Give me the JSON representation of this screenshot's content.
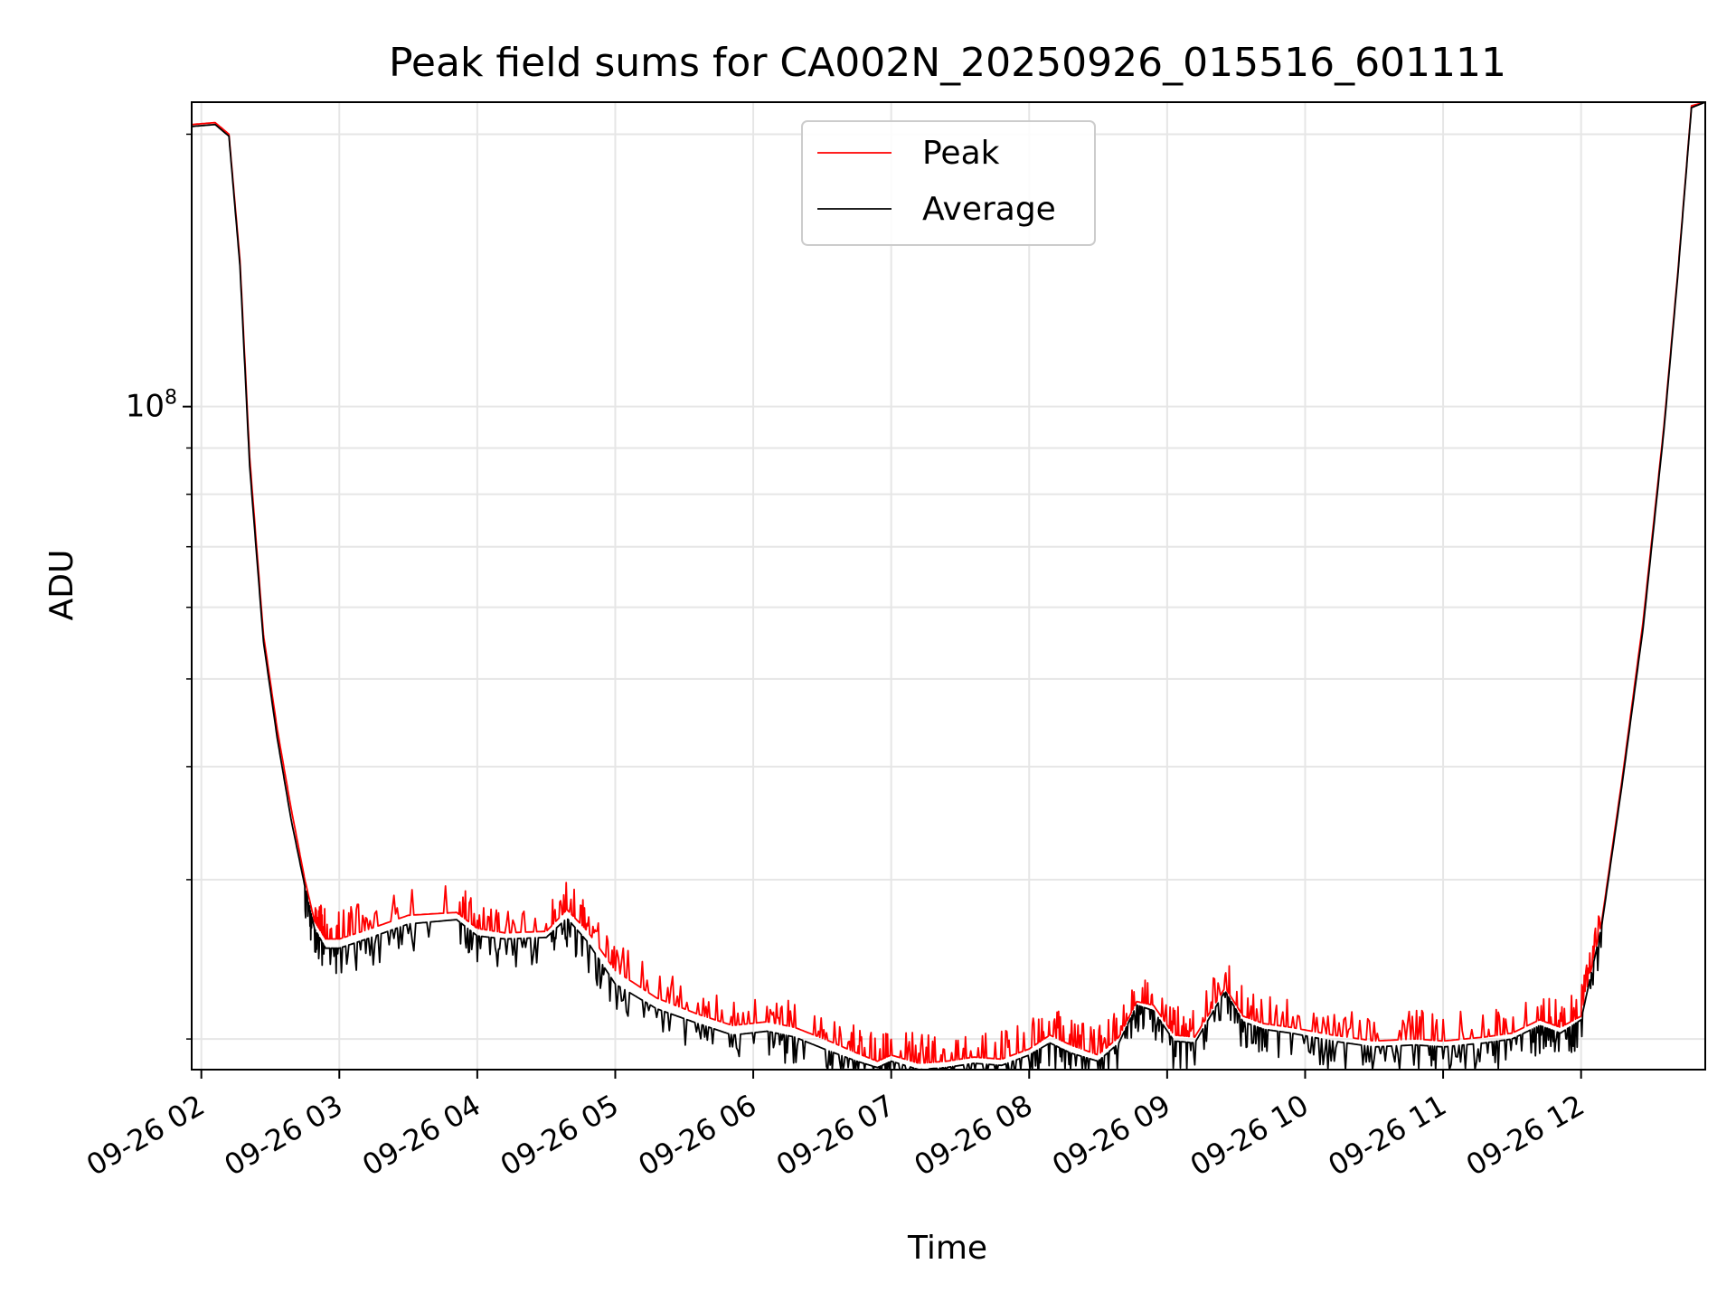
{
  "chart_data": {
    "type": "line",
    "title": "Peak field sums for CA002N_20250926_015516_601111",
    "xlabel": "Time",
    "ylabel": "ADU",
    "yscale": "log",
    "ylim": [
      18500000,
      217000000
    ],
    "xlim": [
      1.93,
      12.9
    ],
    "grid": true,
    "legend_position": "top-center",
    "x_ticks": [
      {
        "value": 2,
        "label": "09-26 02"
      },
      {
        "value": 3,
        "label": "09-26 03"
      },
      {
        "value": 4,
        "label": "09-26 04"
      },
      {
        "value": 5,
        "label": "09-26 05"
      },
      {
        "value": 6,
        "label": "09-26 06"
      },
      {
        "value": 7,
        "label": "09-26 07"
      },
      {
        "value": 8,
        "label": "09-26 08"
      },
      {
        "value": 9,
        "label": "09-26 09"
      },
      {
        "value": 10,
        "label": "09-26 10"
      },
      {
        "value": 11,
        "label": "09-26 11"
      },
      {
        "value": 12,
        "label": "09-26 12"
      }
    ],
    "y_major_ticks": [
      {
        "value": 100000000,
        "label_base": "10",
        "label_exp": "8"
      }
    ],
    "y_minor_ticks": [
      20000000,
      30000000,
      40000000,
      50000000,
      60000000,
      70000000,
      80000000,
      90000000,
      200000000
    ],
    "series": [
      {
        "name": "Peak",
        "color": "#ff0000",
        "x": [
          1.93,
          2.1,
          2.2,
          2.28,
          2.35,
          2.45,
          2.55,
          2.65,
          2.75,
          2.82,
          2.9,
          3.0,
          3.2,
          3.5,
          3.85,
          4.0,
          4.2,
          4.5,
          4.65,
          4.8,
          5.0,
          5.3,
          5.6,
          5.85,
          6.1,
          6.3,
          6.55,
          6.75,
          6.9,
          7.0,
          7.2,
          7.4,
          7.6,
          7.8,
          8.0,
          8.15,
          8.3,
          8.5,
          8.65,
          8.78,
          8.9,
          9.05,
          9.2,
          9.42,
          9.55,
          9.7,
          9.9,
          10.2,
          10.5,
          10.8,
          11.0,
          11.3,
          11.5,
          11.7,
          11.85,
          12.0,
          12.15,
          12.3,
          12.45,
          12.6,
          12.7,
          12.8,
          12.9
        ],
        "values": [
          205000000,
          206000000,
          200000000,
          145000000,
          88000000,
          56000000,
          44000000,
          36000000,
          30000000,
          27000000,
          25800000,
          25800000,
          26400000,
          27400000,
          27600000,
          26500000,
          26200000,
          26300000,
          27800000,
          26300000,
          23800000,
          22200000,
          21300000,
          20700000,
          20900000,
          20600000,
          19900000,
          19300000,
          18900000,
          19200000,
          18800000,
          18900000,
          19100000,
          19000000,
          19500000,
          20200000,
          19700000,
          19200000,
          20100000,
          22000000,
          21800000,
          20200000,
          20100000,
          22800000,
          21200000,
          20800000,
          20600000,
          20200000,
          19900000,
          20000000,
          19900000,
          20100000,
          20300000,
          21000000,
          20600000,
          21200000,
          27000000,
          39000000,
          58000000,
          95000000,
          140000000,
          215000000,
          217000000
        ]
      },
      {
        "name": "Average",
        "color": "#000000",
        "x": [
          1.93,
          2.1,
          2.2,
          2.28,
          2.35,
          2.45,
          2.55,
          2.65,
          2.75,
          2.82,
          2.9,
          3.0,
          3.2,
          3.5,
          3.85,
          4.0,
          4.2,
          4.5,
          4.65,
          4.8,
          5.0,
          5.3,
          5.6,
          5.85,
          6.1,
          6.3,
          6.55,
          6.75,
          6.9,
          7.0,
          7.2,
          7.4,
          7.6,
          7.8,
          8.0,
          8.15,
          8.3,
          8.5,
          8.65,
          8.78,
          8.9,
          9.05,
          9.2,
          9.42,
          9.55,
          9.7,
          9.9,
          10.2,
          10.5,
          10.8,
          11.0,
          11.3,
          11.5,
          11.7,
          11.85,
          12.0,
          12.15,
          12.3,
          12.45,
          12.6,
          12.7,
          12.8,
          12.9
        ],
        "values": [
          204000000,
          205000000,
          199000000,
          143000000,
          86000000,
          55000000,
          43000000,
          35000000,
          29500000,
          26500000,
          25200000,
          25200000,
          25800000,
          26800000,
          27100000,
          26000000,
          25800000,
          25900000,
          27200000,
          25600000,
          23000000,
          21600000,
          20800000,
          20200000,
          20400000,
          20100000,
          19400000,
          18900000,
          18600000,
          18900000,
          18500000,
          18600000,
          18800000,
          18700000,
          19200000,
          19800000,
          19300000,
          18900000,
          19800000,
          21800000,
          21500000,
          19900000,
          19800000,
          22600000,
          20900000,
          20500000,
          20300000,
          19900000,
          19600000,
          19700000,
          19600000,
          19800000,
          20000000,
          20700000,
          20300000,
          21000000,
          26700000,
          38500000,
          57000000,
          94000000,
          139000000,
          214000000,
          217000000
        ]
      }
    ]
  }
}
